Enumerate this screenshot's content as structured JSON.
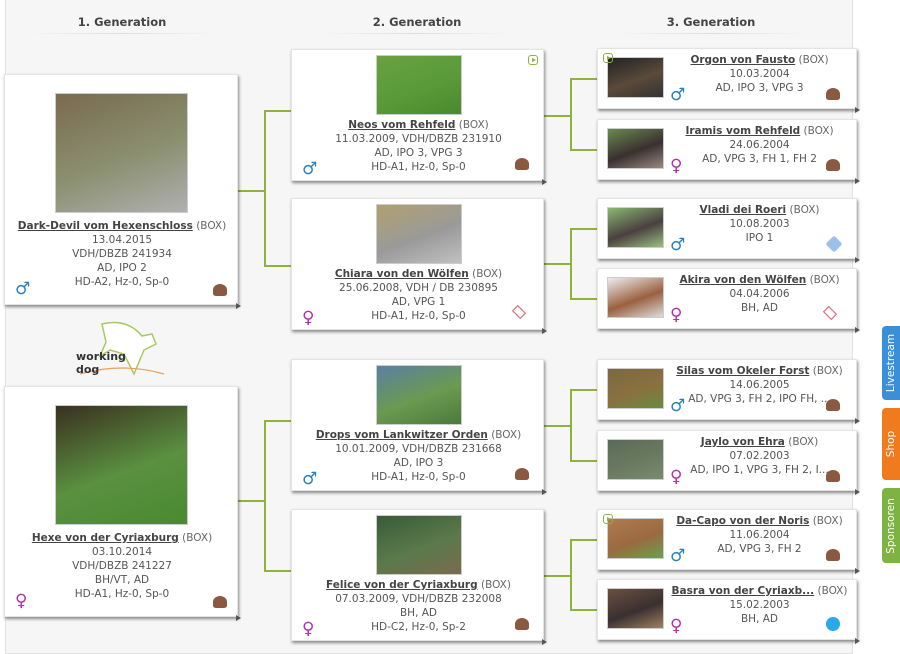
{
  "headers": [
    "1. Generation",
    "2. Generation",
    "3. Generation"
  ],
  "logo_text": "working dog",
  "side_tabs": [
    {
      "label": "Livestream",
      "color": "#3a8fd8"
    },
    {
      "label": "Shop",
      "color": "#f07a1e"
    },
    {
      "label": "Sponsoren",
      "color": "#7cb342"
    }
  ],
  "gen1": [
    {
      "name": "Dark-Devil vom Hexenschloss",
      "breed": "(BOX)",
      "lines": [
        "13.04.2015",
        "VDH/DBZB 241934",
        "AD, IPO 2",
        "HD-A2, Hz-0, Sp-0"
      ],
      "sex": "male",
      "logo": "club",
      "img": [
        "#7a6a50",
        "#8a9070",
        "#b0b0b0"
      ]
    },
    {
      "name": "Hexe von der Cyriaxburg",
      "breed": "(BOX)",
      "lines": [
        "03.10.2014",
        "VDH/DBZB 241227",
        "BH/VT, AD",
        "HD-A1, Hz-0, Sp-0"
      ],
      "sex": "female",
      "logo": "club",
      "img": [
        "#3a3020",
        "#5a9040",
        "#4a8a30"
      ]
    }
  ],
  "gen2": [
    {
      "name": "Neos vom Rehfeld",
      "breed": "(BOX)",
      "lines": [
        "11.03.2009, VDH/DBZB 231910",
        "AD, IPO 3, VPG 3",
        "HD-A1, Hz-0, Sp-0"
      ],
      "sex": "male",
      "logo": "club",
      "video": true,
      "img": [
        "#6aa040",
        "#5a9a38",
        "#4a8a30"
      ]
    },
    {
      "name": "Chiara von den Wölfen",
      "breed": "(BOX)",
      "lines": [
        "25.06.2008, VDH / DB 230895",
        "AD, VPG 1",
        "HD-A1, Hz-0, Sp-0"
      ],
      "sex": "female",
      "logo": "vdh",
      "img": [
        "#b0a070",
        "#9a9a9a",
        "#c0c0c0"
      ]
    },
    {
      "name": "Drops vom Lankwitzer Orden",
      "breed": "(BOX)",
      "lines": [
        "10.01.2009, VDH/DBZB 231668",
        "AD, IPO 3",
        "HD-A1, Hz-0, Sp-0"
      ],
      "sex": "male",
      "logo": "club",
      "img": [
        "#5a80a0",
        "#6a9a50",
        "#4a7a3a"
      ]
    },
    {
      "name": "Felice von der Cyriaxburg",
      "breed": "(BOX)",
      "lines": [
        "07.03.2009, VDH/DBZB 232008",
        "BH, AD",
        "HD-C2, Hz-0, Sp-2"
      ],
      "sex": "female",
      "logo": "club",
      "img": [
        "#3a5a3a",
        "#5a7a4a",
        "#7a6a50"
      ]
    }
  ],
  "gen3": [
    {
      "name": "Orgon von Fausto",
      "breed": "(BOX)",
      "lines": [
        "10.03.2004",
        "AD, IPO 3, VPG 3"
      ],
      "sex": "male",
      "logo": "club",
      "video": true,
      "img": [
        "#222",
        "#5a4a3a",
        "#333"
      ]
    },
    {
      "name": "Iramis vom Rehfeld",
      "breed": "(BOX)",
      "lines": [
        "24.06.2004",
        "AD, VPG 3, FH 1, FH 2"
      ],
      "sex": "female",
      "logo": "club",
      "img": [
        "#6a8a50",
        "#3a3030",
        "#9a8a80"
      ]
    },
    {
      "name": "Vladi dei Roeri",
      "breed": "(BOX)",
      "lines": [
        "10.08.2003",
        "IPO 1"
      ],
      "sex": "male",
      "logo": "diamond",
      "img": [
        "#8ab870",
        "#4a4040",
        "#9ac080"
      ]
    },
    {
      "name": "Akira von den Wölfen",
      "breed": "(BOX)",
      "lines": [
        "04.04.2006",
        "BH, AD"
      ],
      "sex": "female",
      "logo": "vdh",
      "img": [
        "#eee",
        "#9a6040",
        "#ddd"
      ]
    },
    {
      "name": "Silas vom Okeler Forst",
      "breed": "(BOX)",
      "lines": [
        "14.06.2005",
        "AD, VPG 3, FH 2, IPO FH, ..."
      ],
      "sex": "male",
      "logo": "club",
      "img": [
        "#7a6a40",
        "#8a7040",
        "#6a8a40"
      ]
    },
    {
      "name": "Jaylo von Ehra",
      "breed": "(BOX)",
      "lines": [
        "07.02.2003",
        "AD, IPO 1, VPG 3, FH 2, I..."
      ],
      "sex": "female",
      "logo": "club",
      "img": [
        "#5a6a5a",
        "#6a7a60",
        "#7a8a70"
      ]
    },
    {
      "name": "Da-Capo von der Noris",
      "breed": "(BOX)",
      "lines": [
        "11.06.2004",
        "AD, VPG 3, FH 2"
      ],
      "sex": "male",
      "logo": "club",
      "video": true,
      "img": [
        "#b07a50",
        "#9a6a40",
        "#6aa050"
      ]
    },
    {
      "name": "Basra von der Cyriaxb...",
      "breed": "(BOX)",
      "lines": [
        "15.02.2003",
        "BH, AD"
      ],
      "sex": "female",
      "logo": "fci",
      "img": [
        "#6a5040",
        "#3a3030",
        "#a08060"
      ]
    }
  ]
}
